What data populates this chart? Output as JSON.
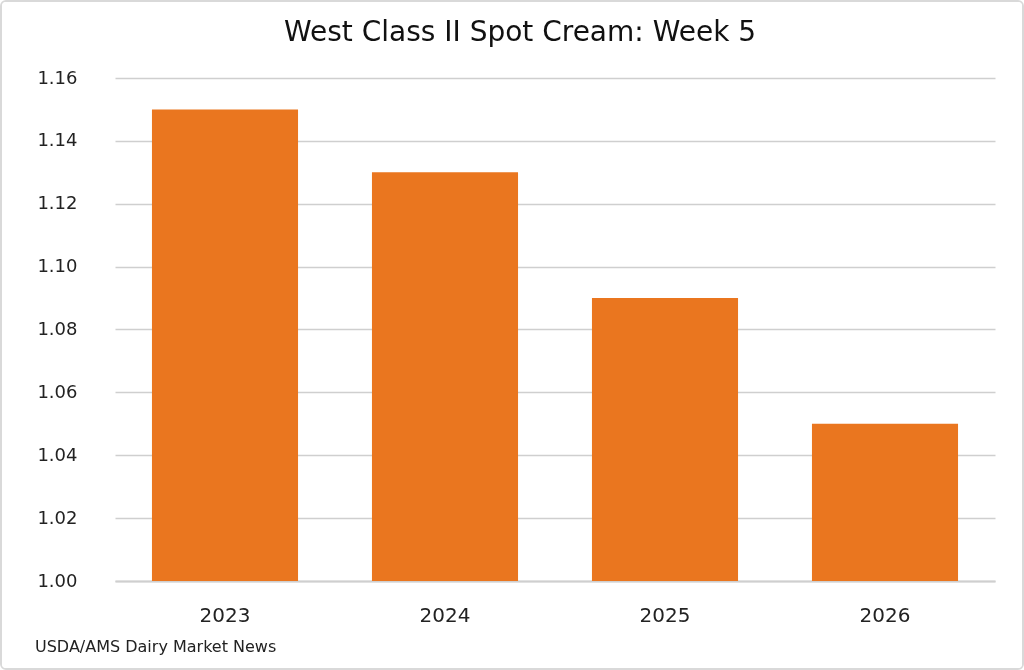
{
  "chart_data": {
    "type": "bar",
    "title": "West Class II Spot Cream: Week 5",
    "categories": [
      "2023",
      "2024",
      "2025",
      "2026"
    ],
    "values": [
      1.15,
      1.13,
      1.09,
      1.05
    ],
    "color": "#ea761f",
    "ylim": [
      1.0,
      1.16
    ],
    "yticks": [
      {
        "value": 1.0,
        "label": "1.00"
      },
      1.02,
      1.04,
      1.06,
      1.08,
      {
        "value": 1.1,
        "label": "1.10"
      },
      1.12,
      1.14,
      1.16
    ],
    "grid": "y",
    "annotations": [
      "USDA/AMS Dairy Market News"
    ]
  }
}
